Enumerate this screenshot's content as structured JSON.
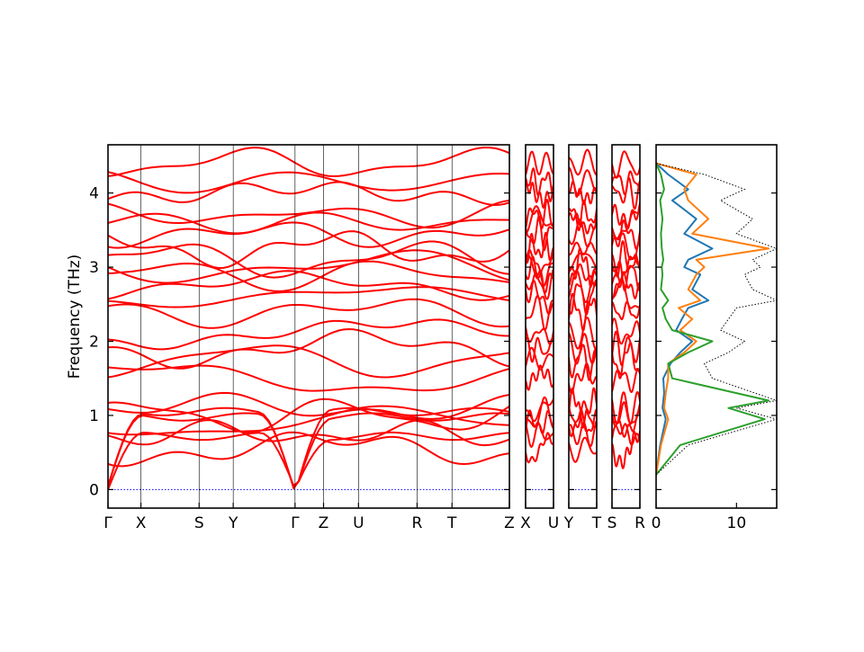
{
  "chart_data": {
    "type": "line",
    "title": "",
    "ylabel": "Frequency (THz)",
    "ylim": [
      -0.25,
      4.65
    ],
    "yticks": [
      0,
      1,
      2,
      3,
      4
    ],
    "band_color": "#ff0000",
    "zero_line_color": "#0000ff",
    "band_segments": [
      {
        "labels": [
          "Γ",
          "X",
          "S",
          "Y",
          "Γ",
          "Z",
          "U",
          "R",
          "T",
          "Z"
        ],
        "tick_positions": [
          0,
          0.082,
          0.227,
          0.312,
          0.466,
          0.537,
          0.624,
          0.77,
          0.857,
          1.0
        ]
      },
      {
        "labels": [
          "X",
          "U"
        ],
        "tick_positions": [
          0,
          1
        ]
      },
      {
        "labels": [
          "Y",
          "T"
        ],
        "tick_positions": [
          0,
          1
        ]
      },
      {
        "labels": [
          "S",
          "R"
        ],
        "tick_positions": [
          0,
          1
        ]
      }
    ],
    "acoustic_branches_THz": {
      "Gamma": [
        0,
        0,
        0
      ],
      "X": [
        0.72,
        0.95,
        1.05
      ],
      "S": [
        0.95,
        0.98,
        1.0
      ],
      "Y": [
        0.96,
        1.0,
        1.05
      ],
      "Z": [
        0.4,
        0.55,
        0.75
      ],
      "U": [
        0.8,
        0.9,
        0.95
      ],
      "R": [
        0.95,
        0.97,
        1.0
      ],
      "T": [
        0.82,
        0.9,
        0.98
      ]
    },
    "visible_band_levels_THz": [
      0.55,
      0.75,
      0.9,
      1.0,
      1.1,
      1.5,
      1.75,
      1.9,
      2.1,
      2.4,
      2.6,
      2.75,
      2.9,
      3.0,
      3.1,
      3.25,
      3.45,
      3.6,
      3.7,
      4.0,
      4.15,
      4.4
    ],
    "dos": {
      "xticks": [
        0,
        10
      ],
      "xlim": [
        0,
        15
      ],
      "series": [
        {
          "color": "#1f77b4",
          "y": [
            0.2,
            0.6,
            0.95,
            1.1,
            1.3,
            1.5,
            1.7,
            1.85,
            2.0,
            2.15,
            2.3,
            2.45,
            2.55,
            2.7,
            2.9,
            3.0,
            3.1,
            3.25,
            3.45,
            3.65,
            3.9,
            4.05,
            4.25,
            4.4
          ],
          "x": [
            0,
            0.5,
            1.2,
            0.8,
            1.0,
            0.9,
            1.8,
            3.0,
            4.5,
            2.5,
            3.2,
            4.0,
            6.5,
            4.5,
            5.5,
            3.5,
            4.0,
            7.0,
            3.5,
            5.0,
            2.0,
            4.0,
            1.5,
            0
          ]
        },
        {
          "color": "#ff7f0e",
          "y": [
            0.2,
            0.6,
            0.95,
            1.1,
            1.3,
            1.5,
            1.7,
            1.85,
            2.0,
            2.15,
            2.3,
            2.45,
            2.55,
            2.7,
            2.9,
            3.0,
            3.1,
            3.25,
            3.45,
            3.65,
            3.9,
            4.05,
            4.25,
            4.4
          ],
          "x": [
            0,
            0.6,
            1.5,
            1.0,
            1.2,
            1.5,
            1.5,
            3.5,
            5.0,
            3.0,
            4.5,
            2.8,
            5.5,
            4.0,
            5.0,
            6.0,
            5.0,
            14.0,
            4.5,
            6.5,
            4.0,
            3.5,
            5.0,
            0
          ]
        },
        {
          "color": "#2ca02c",
          "y": [
            0.2,
            0.6,
            0.95,
            1.1,
            1.2,
            1.5,
            1.7,
            1.85,
            2.0,
            2.15,
            2.3,
            2.45,
            2.55,
            2.7,
            2.9,
            3.0,
            3.1,
            3.25,
            3.45,
            3.65,
            3.9,
            4.05,
            4.25,
            4.4
          ],
          "x": [
            0,
            3.0,
            13.5,
            9.0,
            14.0,
            2.0,
            1.5,
            4.0,
            7.0,
            2.0,
            1.2,
            0.8,
            1.5,
            0.6,
            0.8,
            0.7,
            0.9,
            0.7,
            0.6,
            0.8,
            0.5,
            1.0,
            0.6,
            0
          ]
        },
        {
          "color": "#000000",
          "style": "dotted",
          "y": [
            0.2,
            0.6,
            0.95,
            1.1,
            1.2,
            1.5,
            1.7,
            1.85,
            2.0,
            2.15,
            2.3,
            2.45,
            2.55,
            2.7,
            2.9,
            3.0,
            3.1,
            3.25,
            3.45,
            3.65,
            3.9,
            4.05,
            4.25,
            4.4
          ],
          "x": [
            0,
            4.0,
            15.0,
            10.0,
            15.0,
            7.0,
            6.0,
            9.0,
            11.0,
            8.0,
            9.0,
            10.0,
            15.0,
            12.0,
            11.0,
            13.0,
            12.0,
            15.0,
            10.0,
            12.0,
            8.0,
            11.0,
            6.0,
            0
          ]
        }
      ]
    }
  }
}
